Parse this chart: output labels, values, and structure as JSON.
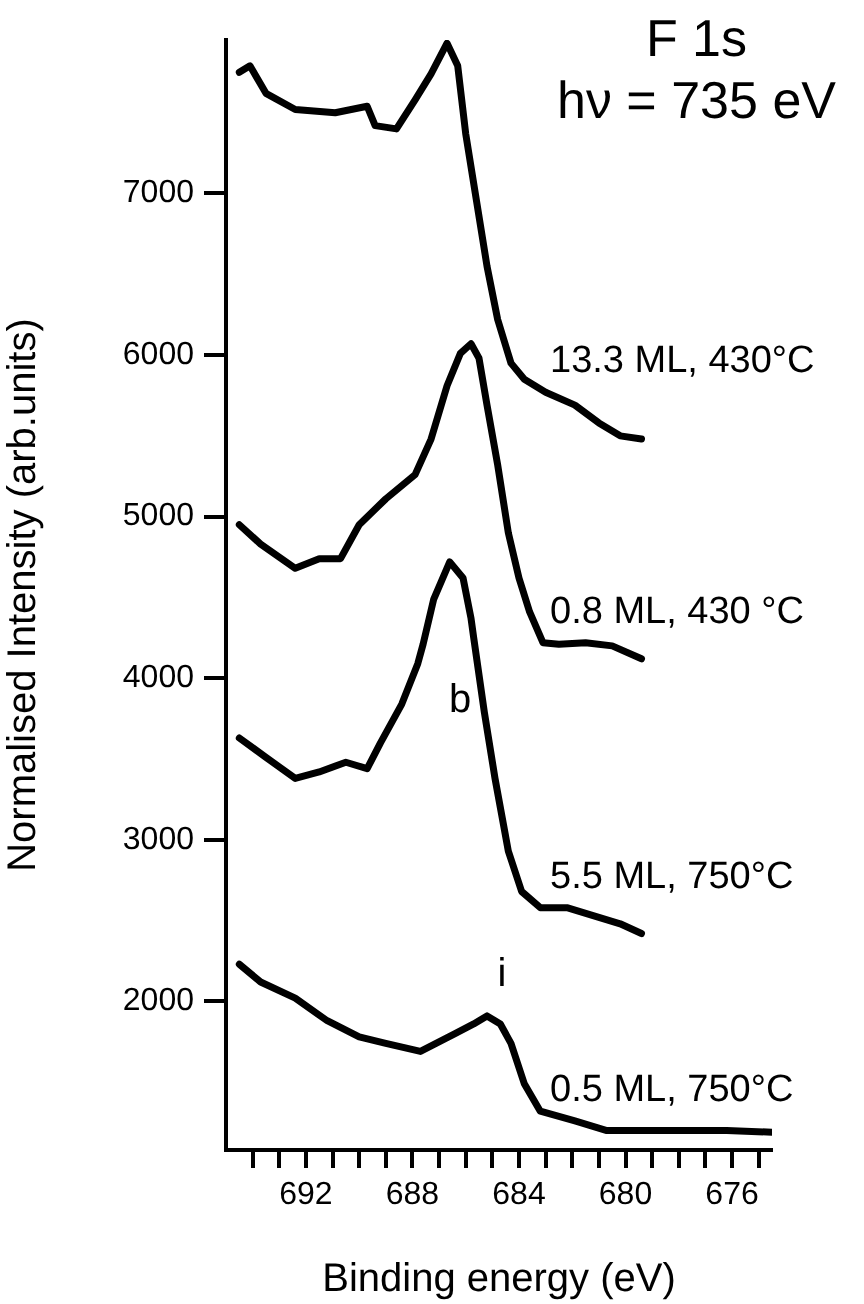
{
  "chart_data": {
    "type": "line",
    "title": "F 1s",
    "subtitle": "hν = 735 eV",
    "xlabel": "Binding energy (eV)",
    "ylabel": "Normalised Intensity (arb.units)",
    "xlim": [
      695,
      674.5
    ],
    "xticks": [
      {
        "value": 694,
        "label": null
      },
      {
        "value": 693,
        "label": null
      },
      692,
      {
        "value": 691,
        "label": null
      },
      {
        "value": 690,
        "label": null
      },
      {
        "value": 689,
        "label": null
      },
      688,
      {
        "value": 687,
        "label": null
      },
      {
        "value": 686,
        "label": null
      },
      {
        "value": 685,
        "label": null
      },
      684,
      {
        "value": 683,
        "label": null
      },
      {
        "value": 682,
        "label": null
      },
      {
        "value": 681,
        "label": null
      },
      680,
      {
        "value": 679,
        "label": null
      },
      {
        "value": 678,
        "label": null
      },
      {
        "value": 677,
        "label": null
      },
      676,
      {
        "value": 675,
        "label": null
      }
    ],
    "ylim": [
      1080,
      7950
    ],
    "yticks": [
      2000,
      3000,
      4000,
      5000,
      6000,
      7000
    ],
    "grid": false,
    "legend": false,
    "marker": "none",
    "line_style": "solid",
    "series": [
      {
        "name": "13.3 ML, 430°C",
        "color": "#000000",
        "x": [
          694.5,
          694.1,
          693.5,
          692.4,
          690.9,
          689.7,
          689.4,
          688.6,
          687.9,
          687.3,
          686.7,
          686.3,
          686.0,
          685.6,
          685.2,
          684.8,
          684.3,
          683.8,
          683.0,
          681.9,
          681.0,
          680.2,
          679.4
        ],
        "values": [
          7750,
          7790,
          7620,
          7520,
          7500,
          7540,
          7420,
          7400,
          7580,
          7740,
          7930,
          7790,
          7370,
          6960,
          6550,
          6220,
          5950,
          5850,
          5770,
          5690,
          5580,
          5500,
          5480
        ]
      },
      {
        "name": "0.8 ML, 430 °C",
        "color": "#000000",
        "x": [
          694.5,
          693.7,
          692.4,
          691.5,
          690.7,
          690.0,
          689.0,
          687.9,
          687.3,
          686.7,
          686.2,
          685.8,
          685.5,
          685.2,
          684.8,
          684.4,
          684.0,
          683.6,
          683.1,
          682.5,
          681.5,
          680.5,
          679.4
        ],
        "values": [
          4950,
          4830,
          4680,
          4740,
          4740,
          4950,
          5110,
          5260,
          5480,
          5810,
          6010,
          6070,
          5980,
          5690,
          5320,
          4900,
          4620,
          4410,
          4220,
          4210,
          4220,
          4200,
          4120
        ]
      },
      {
        "name": "5.5 ML, 750°C",
        "color": "#000000",
        "x": [
          694.5,
          693.5,
          692.4,
          691.5,
          690.5,
          689.7,
          689.2,
          688.4,
          687.8,
          687.6,
          687.2,
          686.6,
          686.1,
          685.8,
          685.7,
          685.3,
          684.9,
          684.4,
          683.9,
          683.2,
          682.2,
          681.0,
          680.2,
          679.4
        ],
        "values": [
          3630,
          3510,
          3380,
          3420,
          3480,
          3440,
          3600,
          3840,
          4090,
          4210,
          4490,
          4720,
          4620,
          4370,
          4250,
          3790,
          3380,
          2930,
          2680,
          2580,
          2580,
          2520,
          2480,
          2420
        ]
      },
      {
        "name": "0.5 ML, 750°C",
        "color": "#000000",
        "x": [
          694.5,
          693.7,
          692.4,
          691.2,
          690.0,
          689.0,
          687.7,
          686.4,
          685.7,
          685.2,
          684.7,
          684.3,
          683.8,
          683.2,
          681.9,
          680.7,
          678.7,
          676.2,
          674.5
        ],
        "values": [
          2230,
          2120,
          2020,
          1880,
          1780,
          1740,
          1690,
          1800,
          1860,
          1910,
          1860,
          1740,
          1490,
          1320,
          1260,
          1200,
          1200,
          1200,
          1190
        ]
      }
    ],
    "annotations": [
      "b",
      "i"
    ]
  }
}
